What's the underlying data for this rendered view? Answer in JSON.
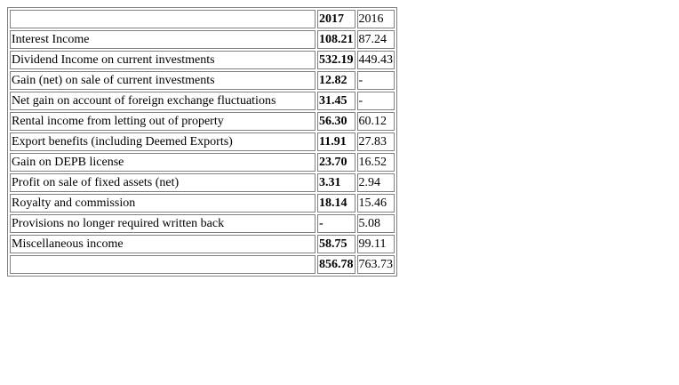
{
  "table": {
    "header": {
      "description": "",
      "col_2017": "2017",
      "col_2016": "2016"
    },
    "rows": [
      {
        "description": "Interest Income",
        "v2017": "108.21",
        "v2016": "87.24"
      },
      {
        "description": "Dividend Income on current investments",
        "v2017": "532.19",
        "v2016": "449.43"
      },
      {
        "description": "Gain (net) on sale of current investments",
        "v2017": "12.82",
        "v2016": "-"
      },
      {
        "description": "Net gain on account of foreign exchange fluctuations",
        "v2017": "31.45",
        "v2016": "-"
      },
      {
        "description": "Rental income from letting out of property",
        "v2017": "56.30",
        "v2016": "60.12"
      },
      {
        "description": "Export benefits (including Deemed Exports)",
        "v2017": "11.91",
        "v2016": "27.83"
      },
      {
        "description": "Gain on DEPB license",
        "v2017": "23.70",
        "v2016": "16.52"
      },
      {
        "description": "Profit on sale of fixed assets (net)",
        "v2017": "3.31",
        "v2016": "2.94"
      },
      {
        "description": "Royalty and commission",
        "v2017": "18.14",
        "v2016": "15.46"
      },
      {
        "description": "Provisions no longer required written back",
        "v2017": "-",
        "v2016": "5.08"
      },
      {
        "description": "Miscellaneous income",
        "v2017": "58.75",
        "v2016": "99.11"
      }
    ],
    "total": {
      "description": "",
      "v2017": "856.78",
      "v2016": "763.73"
    }
  }
}
